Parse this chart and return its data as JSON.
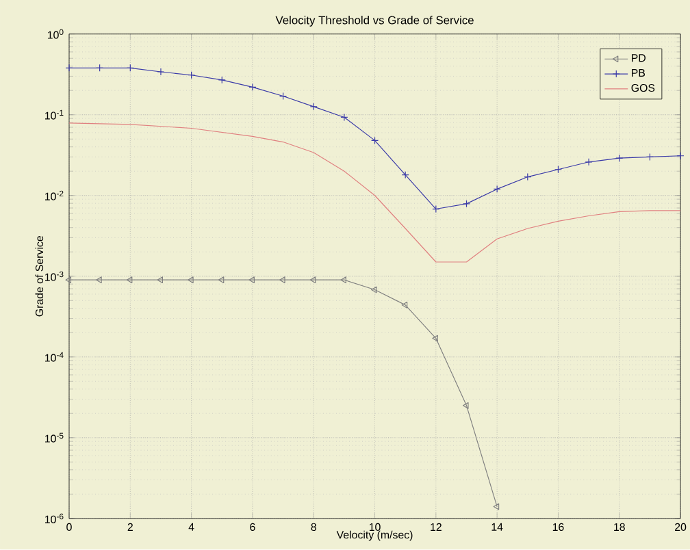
{
  "chart_data": {
    "type": "line",
    "title": "Velocity Threshold vs Grade of Service",
    "xlabel": "Velocity (m/sec)",
    "ylabel": "Grade of Service",
    "log": "y",
    "grid": true,
    "legend": "top right",
    "xlim": [
      0,
      20
    ],
    "xticks": [
      0,
      2,
      4,
      6,
      8,
      10,
      12,
      14,
      16,
      18,
      20
    ],
    "ylim": [
      1e-06,
      1
    ],
    "yticks": [
      {
        "value": 1e-06,
        "label": "10$^{-6}$"
      },
      {
        "value": 1e-05,
        "label": "10$^{-5}$"
      },
      {
        "value": 0.0001,
        "label": "10$^{-4}$"
      },
      {
        "value": 0.001,
        "label": "10$^{-3}$"
      },
      {
        "value": 0.01,
        "label": "10$^{-2}$"
      },
      {
        "value": 0.1,
        "label": "10$^{-1}$"
      },
      {
        "value": 1,
        "label": "10$^{0}$"
      }
    ],
    "series": [
      {
        "name": "PD",
        "color": "#808080",
        "marker": "triangle",
        "x": [
          0,
          1,
          2,
          3,
          4,
          5,
          6,
          7,
          8,
          9,
          10,
          11,
          12,
          13,
          14
        ],
        "values": [
          0.0009,
          0.0009,
          0.0009,
          0.0009,
          0.0009,
          0.0009,
          0.0009,
          0.0009,
          0.0009,
          0.0009,
          0.00068,
          0.00044,
          0.00017,
          2.5e-05,
          1.4e-06
        ]
      },
      {
        "name": "PB",
        "color": "#3a3aa8",
        "marker": "cross",
        "x": [
          0,
          1,
          2,
          3,
          4,
          5,
          6,
          7,
          8,
          9,
          10,
          11,
          12,
          13,
          14,
          15,
          16,
          17,
          18,
          19,
          20
        ],
        "values": [
          0.38,
          0.38,
          0.38,
          0.34,
          0.31,
          0.27,
          0.22,
          0.17,
          0.126,
          0.093,
          0.048,
          0.018,
          0.0068,
          0.0079,
          0.012,
          0.017,
          0.021,
          0.026,
          0.029,
          0.03,
          0.031
        ]
      },
      {
        "name": "GOS",
        "color": "#e08080",
        "marker": "none",
        "x": [
          0,
          2,
          4,
          6,
          7,
          8,
          9,
          10,
          11,
          12,
          13,
          14,
          15,
          16,
          17,
          18,
          19,
          20
        ],
        "values": [
          0.079,
          0.076,
          0.068,
          0.054,
          0.046,
          0.034,
          0.02,
          0.01,
          0.0039,
          0.0015,
          0.0015,
          0.0029,
          0.0039,
          0.0048,
          0.0056,
          0.0063,
          0.0065,
          0.0065
        ]
      }
    ]
  }
}
